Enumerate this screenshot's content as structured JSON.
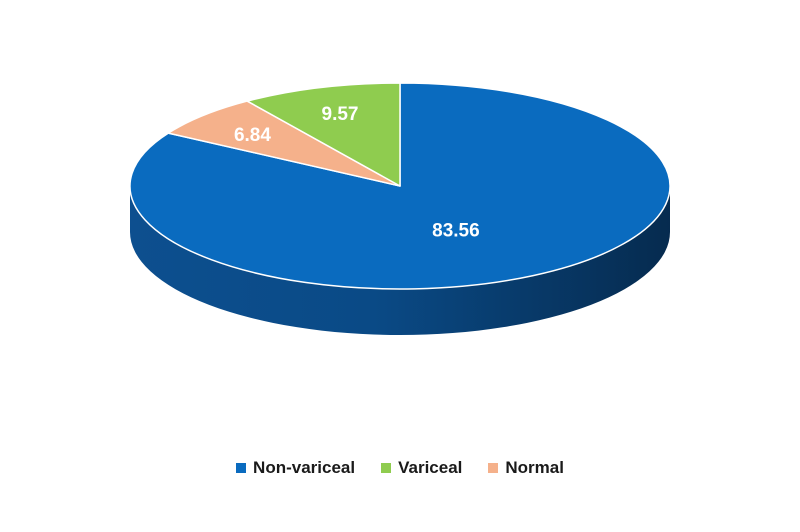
{
  "chart_data": {
    "type": "pie",
    "style": "3d",
    "title": "",
    "start_angle_deg": 0,
    "direction": "clockwise",
    "legend_position": "bottom",
    "slices": [
      {
        "label": "Non-variceal",
        "value": 83.56,
        "display": "83.56",
        "color": "#0a6bbf"
      },
      {
        "label": "Normal",
        "value": 6.84,
        "display": "6.84",
        "color": "#f5b18b"
      },
      {
        "label": "Variceal",
        "value": 9.57,
        "display": "9.57",
        "color": "#8fcc4f"
      }
    ],
    "legend": [
      {
        "label": "Non-variceal",
        "color": "#0a6bbf"
      },
      {
        "label": "Variceal",
        "color": "#8fcc4f"
      },
      {
        "label": "Normal",
        "color": "#f5b18b"
      }
    ]
  }
}
